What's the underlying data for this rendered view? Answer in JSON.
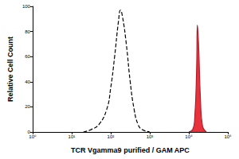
{
  "chart_data": {
    "type": "line",
    "x_label": "TCR Vgamma9 purified / GAM APC",
    "y_label": "Relative Cell Count",
    "log": "x",
    "grid": false,
    "xlim": [
      1,
      100000
    ],
    "xticks": [
      {
        "value": 1,
        "label": "10⁰"
      },
      {
        "value": 10,
        "label": "10¹"
      },
      {
        "value": 100,
        "label": "10²"
      },
      {
        "value": 1000,
        "label": "10³"
      },
      {
        "value": 10000,
        "label": "10⁴"
      },
      {
        "value": 100000,
        "label": "10⁵"
      }
    ],
    "ylim": [
      0,
      100
    ],
    "yticks": [
      0,
      20,
      40,
      60,
      80,
      100
    ],
    "series": [
      {
        "color": "#000000",
        "line_style": "dashed",
        "type": "line",
        "x": [
          20,
          32,
          50,
          79,
          100,
          126,
          158,
          178,
          200,
          251,
          316,
          398,
          501,
          631,
          1000
        ],
        "values": [
          0,
          2,
          6,
          18,
          35,
          60,
          88,
          97,
          92,
          70,
          40,
          18,
          6,
          2,
          0
        ]
      },
      {
        "color": "#e8333c",
        "line_style": "solid",
        "type": "area",
        "x": [
          10000,
          12589,
          14125,
          15849,
          16596,
          17783,
          19953,
          22387,
          28184
        ],
        "values": [
          0,
          2,
          10,
          50,
          85,
          70,
          25,
          5,
          0
        ]
      }
    ]
  }
}
